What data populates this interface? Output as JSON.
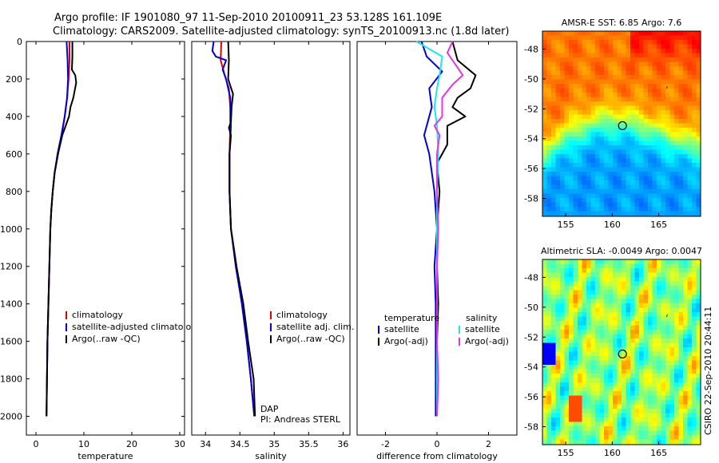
{
  "header": {
    "line1": "Argo profile: IF 1901080_97 11-Sep-2010 20100911_23 53.128S 161.109E",
    "line2": "Climatology: CARS2009. Satellite-adjusted climatology: synTS_20100913.nc (1.8d later)"
  },
  "side_text": "CSIRO 22-Sep-2010 20:44:11",
  "colors": {
    "climatology": "#e00000",
    "satellite": "#0000dd",
    "argo": "#000000",
    "salinity_satellite": "#22e6e6",
    "salinity_argo": "#e633e6"
  },
  "chart_data": [
    {
      "id": "temperature",
      "type": "line",
      "xlabel": "temperature",
      "ylabel": "",
      "xlim": [
        -2,
        31
      ],
      "ylim": [
        2100,
        0
      ],
      "xticks": [
        0,
        10,
        20,
        30
      ],
      "xtick_labels": [
        "0",
        "10",
        "20",
        "30"
      ],
      "yticks": [
        0,
        200,
        400,
        600,
        800,
        1000,
        1200,
        1400,
        1600,
        1800,
        2000
      ],
      "ytick_labels": [
        "0",
        "200",
        "400",
        "600",
        "800",
        "1000",
        "1200",
        "1400",
        "1600",
        "1800",
        "2000"
      ],
      "legend": [
        "climatology",
        "satellite-adjusted climatology",
        "Argo(..raw -QC)"
      ],
      "series": [
        {
          "name": "climatology",
          "color": "climatology",
          "points": [
            [
              7.0,
              0
            ],
            [
              7.0,
              100
            ],
            [
              6.8,
              200
            ],
            [
              6.5,
              300
            ],
            [
              6.0,
              400
            ],
            [
              5.4,
              500
            ],
            [
              4.6,
              600
            ],
            [
              3.9,
              700
            ],
            [
              3.5,
              800
            ],
            [
              3.2,
              900
            ],
            [
              3.0,
              1000
            ],
            [
              2.8,
              1200
            ],
            [
              2.6,
              1400
            ],
            [
              2.4,
              1600
            ],
            [
              2.3,
              1800
            ],
            [
              2.2,
              2000
            ]
          ]
        },
        {
          "name": "satellite-adjusted climatology",
          "color": "satellite",
          "points": [
            [
              6.4,
              0
            ],
            [
              6.6,
              100
            ],
            [
              6.7,
              200
            ],
            [
              6.5,
              300
            ],
            [
              6.0,
              400
            ],
            [
              5.3,
              500
            ],
            [
              4.5,
              600
            ],
            [
              3.9,
              700
            ],
            [
              3.5,
              800
            ],
            [
              3.2,
              900
            ],
            [
              3.0,
              1000
            ],
            [
              2.8,
              1200
            ],
            [
              2.6,
              1400
            ],
            [
              2.4,
              1600
            ],
            [
              2.3,
              1800
            ],
            [
              2.2,
              2000
            ]
          ]
        },
        {
          "name": "Argo(..raw -QC)",
          "color": "argo",
          "points": [
            [
              7.6,
              0
            ],
            [
              7.6,
              80
            ],
            [
              7.5,
              150
            ],
            [
              8.2,
              180
            ],
            [
              8.4,
              220
            ],
            [
              7.8,
              300
            ],
            [
              7.2,
              350
            ],
            [
              6.9,
              400
            ],
            [
              6.2,
              450
            ],
            [
              5.5,
              500
            ],
            [
              4.6,
              600
            ],
            [
              3.9,
              700
            ],
            [
              3.5,
              800
            ],
            [
              3.2,
              900
            ],
            [
              3.0,
              1000
            ],
            [
              2.8,
              1200
            ],
            [
              2.6,
              1400
            ],
            [
              2.4,
              1600
            ],
            [
              2.3,
              1800
            ],
            [
              2.2,
              2000
            ]
          ]
        }
      ]
    },
    {
      "id": "salinity",
      "type": "line",
      "xlabel": "salinity",
      "xlim": [
        33.8,
        36.1
      ],
      "ylim": [
        2100,
        0
      ],
      "xticks": [
        34,
        34.5,
        35,
        35.5,
        36
      ],
      "xtick_labels": [
        "34",
        "34.5",
        "35",
        "35.5",
        "36"
      ],
      "legend": [
        "climatology",
        "satellite adj. clim.",
        "Argo(..raw -QC)"
      ],
      "annotation": [
        "DAP",
        "PI: Andreas STERL"
      ],
      "series": [
        {
          "name": "climatology",
          "color": "climatology",
          "points": [
            [
              34.23,
              0
            ],
            [
              34.22,
              100
            ],
            [
              34.28,
              180
            ],
            [
              34.34,
              250
            ],
            [
              34.36,
              350
            ],
            [
              34.36,
              450
            ],
            [
              34.35,
              600
            ],
            [
              34.35,
              800
            ],
            [
              34.37,
              1000
            ],
            [
              34.45,
              1200
            ],
            [
              34.53,
              1400
            ],
            [
              34.6,
              1600
            ],
            [
              34.66,
              1800
            ],
            [
              34.71,
              2000
            ]
          ]
        },
        {
          "name": "satellite adj. clim.",
          "color": "satellite",
          "points": [
            [
              34.12,
              0
            ],
            [
              34.1,
              50
            ],
            [
              34.15,
              80
            ],
            [
              34.3,
              100
            ],
            [
              34.25,
              150
            ],
            [
              34.3,
              200
            ],
            [
              34.36,
              300
            ],
            [
              34.37,
              450
            ],
            [
              34.35,
              600
            ],
            [
              34.35,
              800
            ],
            [
              34.37,
              1000
            ],
            [
              34.44,
              1200
            ],
            [
              34.53,
              1400
            ],
            [
              34.6,
              1600
            ],
            [
              34.66,
              1800
            ],
            [
              34.71,
              2000
            ]
          ]
        },
        {
          "name": "Argo(..raw -QC)",
          "color": "argo",
          "points": [
            [
              34.33,
              0
            ],
            [
              34.34,
              100
            ],
            [
              34.33,
              200
            ],
            [
              34.4,
              280
            ],
            [
              34.38,
              350
            ],
            [
              34.37,
              430
            ],
            [
              34.34,
              460
            ],
            [
              34.37,
              500
            ],
            [
              34.35,
              600
            ],
            [
              34.35,
              800
            ],
            [
              34.37,
              1000
            ],
            [
              34.45,
              1200
            ],
            [
              34.55,
              1400
            ],
            [
              34.62,
              1600
            ],
            [
              34.7,
              1800
            ],
            [
              34.72,
              2000
            ]
          ]
        }
      ]
    },
    {
      "id": "difference",
      "type": "line",
      "xlabel": "difference from climatology",
      "xlim": [
        -3.1,
        3.1
      ],
      "ylim": [
        2100,
        0
      ],
      "xticks": [
        -2,
        0,
        2
      ],
      "xtick_labels": [
        "-2",
        "0",
        "2"
      ],
      "legend_left_title": "temperature",
      "legend_left": [
        "satellite",
        "Argo(-adj)"
      ],
      "legend_right_title": "salinity",
      "legend_right": [
        "satellite",
        "Argo(-adj)"
      ],
      "series": [
        {
          "name": "temperature satellite",
          "color": "satellite",
          "points": [
            [
              -0.6,
              0
            ],
            [
              -0.4,
              80
            ],
            [
              0.2,
              160
            ],
            [
              -0.3,
              250
            ],
            [
              -0.2,
              350
            ],
            [
              -0.5,
              500
            ],
            [
              -0.3,
              600
            ],
            [
              -0.1,
              800
            ],
            [
              0,
              1000
            ],
            [
              -0.1,
              1200
            ],
            [
              -0.05,
              1400
            ],
            [
              -0.05,
              1600
            ],
            [
              -0.05,
              1800
            ],
            [
              -0.05,
              2000
            ]
          ]
        },
        {
          "name": "temperature Argo(-adj)",
          "color": "argo",
          "points": [
            [
              0.6,
              0
            ],
            [
              0.8,
              100
            ],
            [
              1.5,
              180
            ],
            [
              1.3,
              250
            ],
            [
              0.8,
              300
            ],
            [
              0.6,
              350
            ],
            [
              1.1,
              400
            ],
            [
              0.4,
              450
            ],
            [
              0.4,
              550
            ],
            [
              0,
              650
            ],
            [
              0.1,
              800
            ],
            [
              0,
              1000
            ],
            [
              0,
              1200
            ],
            [
              0.05,
              1400
            ],
            [
              0,
              1600
            ],
            [
              0,
              1800
            ],
            [
              0,
              2000
            ]
          ]
        },
        {
          "name": "salinity satellite",
          "color": "salinity_satellite",
          "points": [
            [
              -0.8,
              0
            ],
            [
              0.2,
              80
            ],
            [
              0.1,
              180
            ],
            [
              0,
              250
            ],
            [
              -0.1,
              350
            ],
            [
              0,
              450
            ],
            [
              0.05,
              600
            ],
            [
              0,
              800
            ],
            [
              0,
              1000
            ],
            [
              0,
              1200
            ],
            [
              0,
              1400
            ],
            [
              0,
              1600
            ],
            [
              0,
              1800
            ],
            [
              0,
              2000
            ]
          ]
        },
        {
          "name": "salinity Argo(-adj)",
          "color": "salinity_argo",
          "points": [
            [
              0.6,
              0
            ],
            [
              0.4,
              60
            ],
            [
              1.0,
              180
            ],
            [
              0.6,
              230
            ],
            [
              0.2,
              300
            ],
            [
              0.2,
              400
            ],
            [
              -0.1,
              450
            ],
            [
              0.1,
              500
            ],
            [
              0,
              600
            ],
            [
              0,
              800
            ],
            [
              0.05,
              1000
            ],
            [
              0,
              1200
            ],
            [
              0,
              1400
            ],
            [
              0,
              1600
            ],
            [
              0.05,
              1800
            ],
            [
              0,
              2000
            ]
          ]
        }
      ]
    },
    {
      "id": "sst_map",
      "type": "heatmap",
      "title": "AMSR-E SST: 6.85 Argo: 7.6",
      "xlim": [
        152.5,
        169.5
      ],
      "ylim": [
        -59.2,
        -46.8
      ],
      "xticks": [
        155,
        160,
        165
      ],
      "xtick_labels": [
        "155",
        "160",
        "165"
      ],
      "yticks": [
        -48,
        -50,
        -52,
        -54,
        -56,
        -58
      ],
      "ytick_labels": [
        "-48",
        "-50",
        "-52",
        "-54",
        "-56",
        "-58"
      ],
      "marker": {
        "lon": 161.1,
        "lat": -53.13
      }
    },
    {
      "id": "sla_map",
      "type": "heatmap",
      "title": "Altimetric SLA: -0.0049 Argo: 0.0047",
      "xlim": [
        152.5,
        169.5
      ],
      "ylim": [
        -59.2,
        -46.8
      ],
      "xticks": [
        155,
        160,
        165
      ],
      "xtick_labels": [
        "155",
        "160",
        "165"
      ],
      "yticks": [
        -48,
        -50,
        -52,
        -54,
        -56,
        -58
      ],
      "ytick_labels": [
        "-48",
        "-50",
        "-52",
        "-54",
        "-56",
        "-58"
      ],
      "marker": {
        "lon": 161.1,
        "lat": -53.13
      }
    }
  ]
}
